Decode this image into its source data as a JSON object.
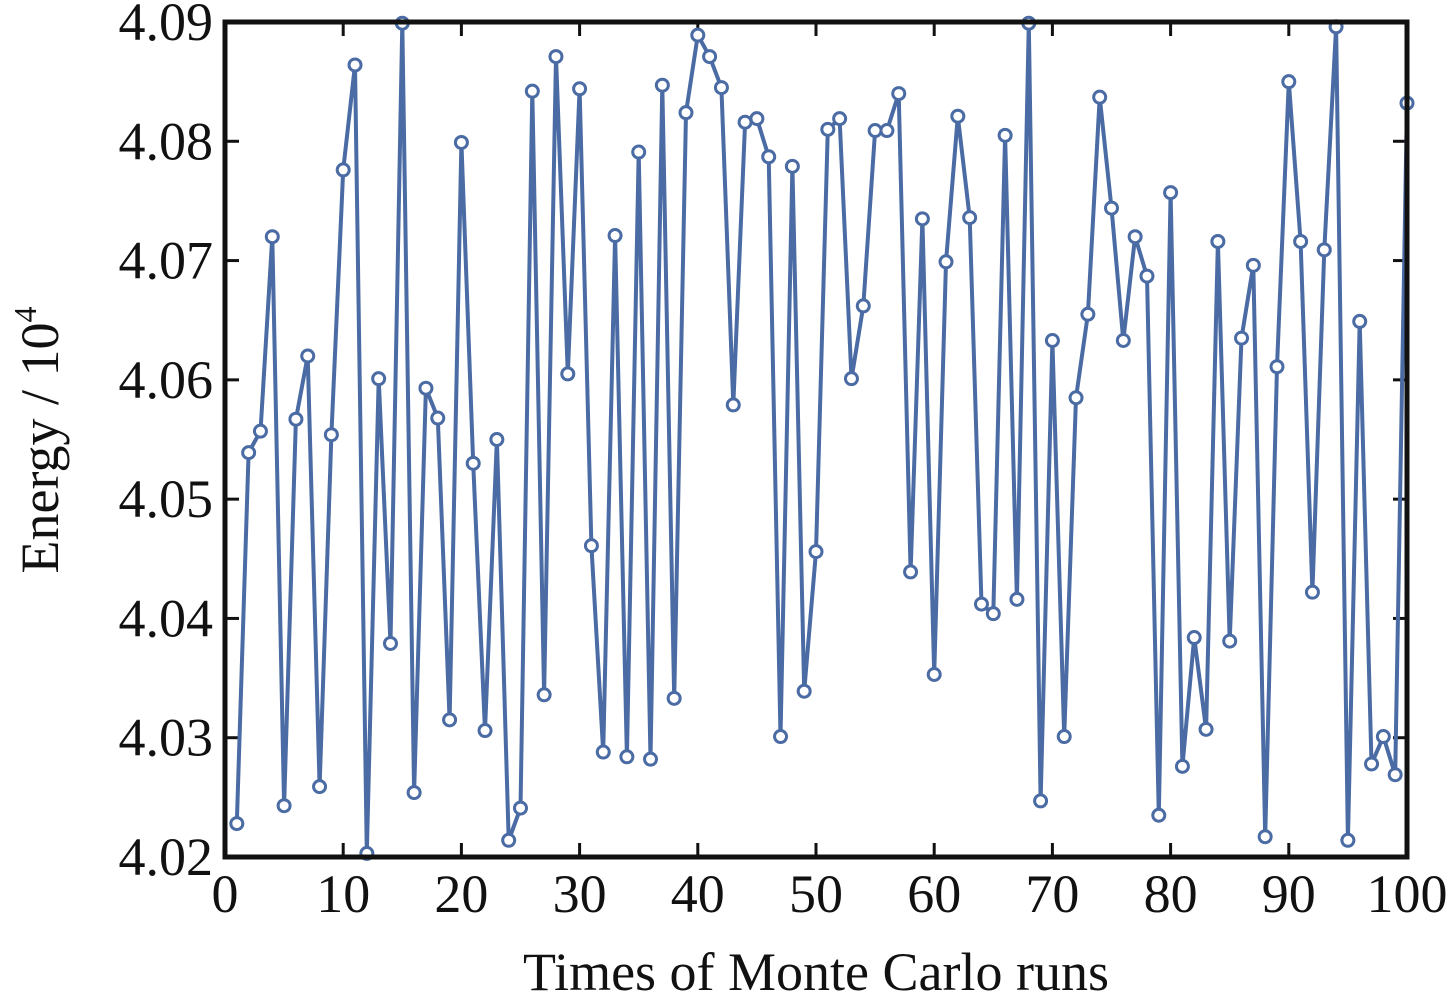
{
  "chart_data": {
    "type": "line",
    "title": "",
    "xlabel": "Times of Monte Carlo runs",
    "ylabel": "Energy / 10",
    "ylabel_superscript": "4",
    "xlim": [
      0,
      100
    ],
    "ylim": [
      4.02,
      4.09
    ],
    "xticks": [
      0,
      10,
      20,
      30,
      40,
      50,
      60,
      70,
      80,
      90,
      100
    ],
    "xtick_labels": [
      "0",
      "10",
      "20",
      "30",
      "40",
      "50",
      "60",
      "70",
      "80",
      "90",
      "100"
    ],
    "yticks": [
      4.02,
      4.03,
      4.04,
      4.05,
      4.06,
      4.07,
      4.08,
      4.09
    ],
    "ytick_labels": [
      "4.02",
      "4.03",
      "4.04",
      "4.05",
      "4.06",
      "4.07",
      "4.08",
      "4.09"
    ],
    "grid": false,
    "legend": null,
    "series": [
      {
        "name": "Energy",
        "color": "#4a6ba3",
        "marker": "circle",
        "x": [
          1,
          2,
          3,
          4,
          5,
          6,
          7,
          8,
          9,
          10,
          11,
          12,
          13,
          14,
          15,
          16,
          17,
          18,
          19,
          20,
          21,
          22,
          23,
          24,
          25,
          26,
          27,
          28,
          29,
          30,
          31,
          32,
          33,
          34,
          35,
          36,
          37,
          38,
          39,
          40,
          41,
          42,
          43,
          44,
          45,
          46,
          47,
          48,
          49,
          50,
          51,
          52,
          53,
          54,
          55,
          56,
          57,
          58,
          59,
          60,
          61,
          62,
          63,
          64,
          65,
          66,
          67,
          68,
          69,
          70,
          71,
          72,
          73,
          74,
          75,
          76,
          77,
          78,
          79,
          80,
          81,
          82,
          83,
          84,
          85,
          86,
          87,
          88,
          89,
          90,
          91,
          92,
          93,
          94,
          95,
          96,
          97,
          98,
          99,
          100
        ],
        "values": [
          4.0228,
          4.0539,
          4.0557,
          4.072,
          4.0243,
          4.0567,
          4.062,
          4.0259,
          4.0554,
          4.0776,
          4.0864,
          4.0203,
          4.0601,
          4.0379,
          4.0899,
          4.0254,
          4.0593,
          4.0568,
          4.0315,
          4.0799,
          4.053,
          4.0306,
          4.055,
          4.0214,
          4.0241,
          4.0842,
          4.0336,
          4.0871,
          4.0605,
          4.0844,
          4.0461,
          4.0288,
          4.0721,
          4.0284,
          4.0791,
          4.0282,
          4.0847,
          4.0333,
          4.0824,
          4.0889,
          4.0871,
          4.0845,
          4.0579,
          4.0816,
          4.0819,
          4.0787,
          4.0301,
          4.0779,
          4.0339,
          4.0456,
          4.081,
          4.0819,
          4.0601,
          4.0662,
          4.0809,
          4.0809,
          4.084,
          4.0439,
          4.0735,
          4.0353,
          4.0699,
          4.0821,
          4.0736,
          4.0412,
          4.0404,
          4.0805,
          4.0416,
          4.0899,
          4.0247,
          4.0633,
          4.0301,
          4.0585,
          4.0655,
          4.0837,
          4.0744,
          4.0633,
          4.072,
          4.0687,
          4.0235,
          4.0757,
          4.0276,
          4.0384,
          4.0307,
          4.0716,
          4.0381,
          4.0635,
          4.0696,
          4.0217,
          4.0611,
          4.085,
          4.0716,
          4.0422,
          4.0709,
          4.0896,
          4.0214,
          4.0649,
          4.0278,
          4.0301,
          4.0269,
          4.0832
        ]
      }
    ]
  }
}
